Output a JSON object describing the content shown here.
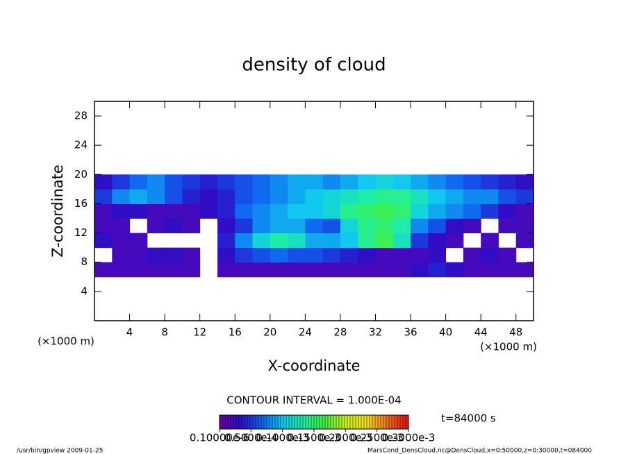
{
  "chart_data": {
    "type": "heatmap",
    "title": "density of cloud",
    "xlabel": "X-coordinate",
    "ylabel": "Z-coordinate",
    "xunit": "(×1000 m)",
    "yunit": "(×1000 m)",
    "contour_interval": "CONTOUR INTERVAL = 1.000E-04",
    "time_label": "t=84000 s",
    "footer_left": "/usr/bin/gpview   2009-01-25",
    "footer_right": "MarsCond_DensCloud.nc@DensCloud,x=0:50000,z=0:30000,t=084000",
    "xlim": [
      0,
      50
    ],
    "ylim": [
      0,
      30
    ],
    "xticks": [
      4,
      8,
      12,
      16,
      20,
      24,
      28,
      32,
      36,
      40,
      44,
      48
    ],
    "yticks": [
      4,
      8,
      12,
      16,
      20,
      24,
      28
    ],
    "x": [
      1,
      3,
      5,
      7,
      9,
      11,
      13,
      15,
      17,
      19,
      21,
      23,
      25,
      27,
      29,
      31,
      33,
      35,
      37,
      39,
      41,
      43,
      45,
      47,
      49
    ],
    "y": [
      7,
      9,
      11,
      13,
      15,
      17,
      19
    ],
    "z": [
      [
        2e-05,
        2e-05,
        2e-05,
        2e-05,
        2e-05,
        2e-05,
        null,
        2e-05,
        2e-05,
        2e-05,
        2e-05,
        2e-05,
        2e-05,
        2e-05,
        2e-05,
        2e-05,
        2e-05,
        2e-05,
        3e-05,
        4e-05,
        3e-05,
        2e-05,
        2e-05,
        2e-05,
        2e-05
      ],
      [
        null,
        2e-05,
        2e-05,
        3e-05,
        3e-05,
        2e-05,
        null,
        3e-05,
        5e-05,
        6e-05,
        7e-05,
        6e-05,
        6e-05,
        5e-05,
        4e-05,
        3e-05,
        2e-05,
        2e-05,
        2e-05,
        3e-05,
        null,
        2e-05,
        3e-05,
        2e-05,
        null
      ],
      [
        3e-05,
        2e-05,
        2e-05,
        null,
        null,
        null,
        null,
        4e-05,
        8e-05,
        0.00011,
        0.00013,
        0.00012,
        9e-05,
        9e-05,
        0.0001,
        0.00014,
        0.00016,
        0.00012,
        5e-05,
        3e-05,
        2e-05,
        null,
        2e-05,
        null,
        2e-05
      ],
      [
        2e-05,
        2e-05,
        null,
        2e-05,
        3e-05,
        2e-05,
        null,
        3e-05,
        5e-05,
        8e-05,
        9e-05,
        9e-05,
        7e-05,
        6e-05,
        0.00011,
        0.00014,
        0.00015,
        0.00013,
        8e-05,
        6e-05,
        3e-05,
        2e-05,
        null,
        2e-05,
        2e-05
      ],
      [
        2e-05,
        3e-05,
        3e-05,
        2e-05,
        2e-05,
        2e-05,
        3e-05,
        4e-05,
        7e-05,
        8e-05,
        9e-05,
        0.0001,
        0.0001,
        0.00011,
        0.00014,
        0.00015,
        0.00016,
        0.00015,
        0.00011,
        9e-05,
        8e-05,
        7e-05,
        5e-05,
        3e-05,
        2e-05
      ],
      [
        5e-05,
        8e-05,
        9e-05,
        8e-05,
        6e-05,
        4e-05,
        3e-05,
        4e-05,
        6e-05,
        7e-05,
        8e-05,
        9e-05,
        0.0001,
        0.00011,
        0.00012,
        0.00013,
        0.00014,
        0.00014,
        0.00012,
        0.0001,
        9e-05,
        8e-05,
        8e-05,
        6e-05,
        5e-05
      ],
      [
        3e-05,
        5e-05,
        7e-05,
        8e-05,
        6e-05,
        5e-05,
        4e-05,
        5e-05,
        6e-05,
        7e-05,
        8e-05,
        9e-05,
        9e-05,
        8e-05,
        9e-05,
        0.0001,
        0.00011,
        0.0001,
        9e-05,
        8e-05,
        7e-05,
        6e-05,
        5e-05,
        4e-05,
        3e-05
      ]
    ],
    "clim": [
      1e-07,
      0.0003
    ],
    "colormap": [
      "#6c00a8",
      "#2a10c8",
      "#1060f0",
      "#10c8f0",
      "#20f0a0",
      "#40f040",
      "#c8f020",
      "#f0e020",
      "#f07020",
      "#e01010"
    ],
    "colorbar_ticks": [
      {
        "value": 1e-07,
        "label": "0.10000e-6"
      },
      {
        "value": 5e-05,
        "label": "0.5000e-4"
      },
      {
        "value": 0.0001,
        "label": "0.1000e-3"
      },
      {
        "value": 0.00015,
        "label": "0.1500e-3"
      },
      {
        "value": 0.0002,
        "label": "0.2000e-3"
      },
      {
        "value": 0.00025,
        "label": "0.2500e-3"
      },
      {
        "value": 0.0003,
        "label": "0.3000e-3"
      }
    ]
  }
}
